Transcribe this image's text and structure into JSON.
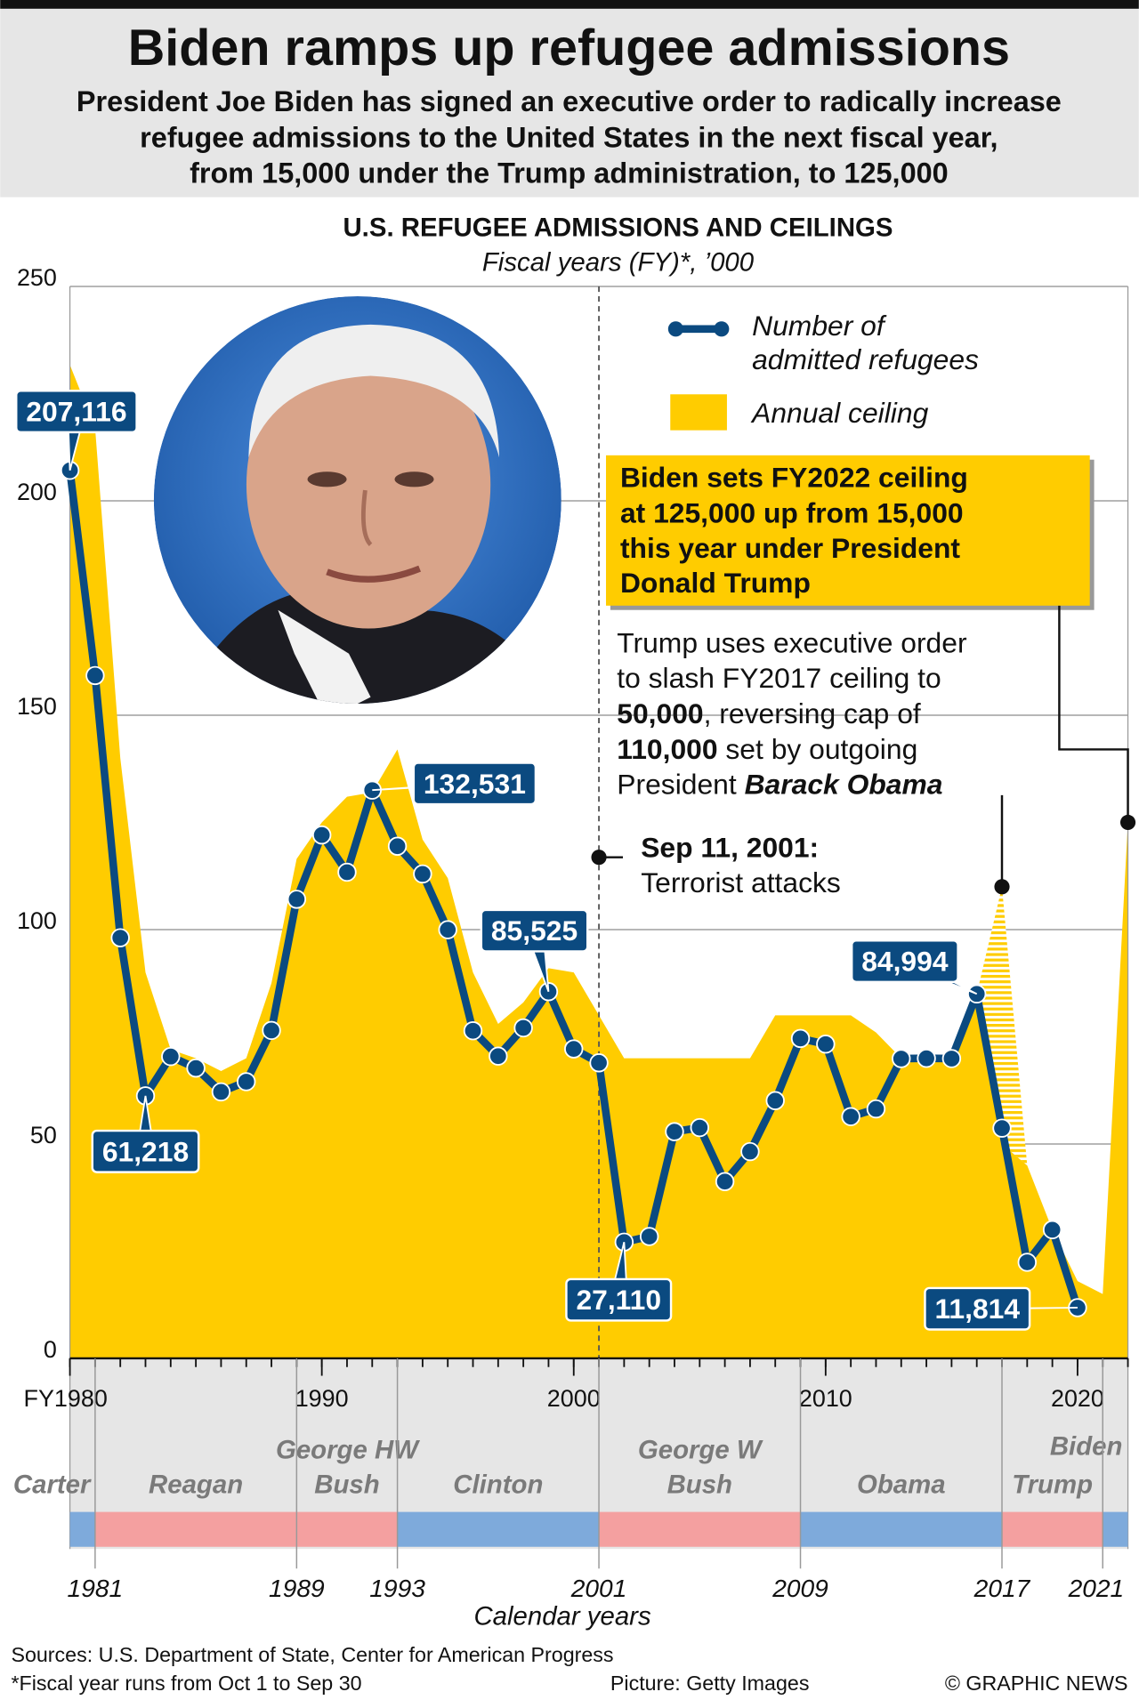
{
  "header": {
    "title": "Biden ramps up refugee admissions",
    "subtitle": [
      "President Joe Biden has signed an executive order to radically increase",
      "refugee admissions to the United States in the next fiscal year,",
      "from 15,000 under the Trump administration, to 125,000"
    ]
  },
  "chart_data": {
    "type": "line",
    "title": "U.S. REFUGEE ADMISSIONS AND CEILINGS",
    "subtitle": "Fiscal years (FY)*, ’000",
    "x": [
      1980,
      1981,
      1982,
      1983,
      1984,
      1985,
      1986,
      1987,
      1988,
      1989,
      1990,
      1991,
      1992,
      1993,
      1994,
      1995,
      1996,
      1997,
      1998,
      1999,
      2000,
      2001,
      2002,
      2003,
      2004,
      2005,
      2006,
      2007,
      2008,
      2009,
      2010,
      2011,
      2012,
      2013,
      2014,
      2015,
      2016,
      2017,
      2018,
      2019,
      2020,
      2021,
      2022
    ],
    "xlim": [
      1980,
      2022
    ],
    "xticks": [
      {
        "value": 1980,
        "label": "FY1980"
      },
      1990,
      2000,
      2010,
      2020
    ],
    "ylim": [
      0,
      250
    ],
    "yticks": [
      0,
      50,
      100,
      150,
      200,
      250
    ],
    "grid": true,
    "series": [
      {
        "name": "Annual ceiling",
        "color": "#ffcc00",
        "style": "area",
        "values": [
          231.7,
          217,
          140,
          90,
          72,
          70,
          67,
          70,
          87.5,
          116.5,
          125,
          131,
          132,
          142,
          121,
          112,
          90,
          78,
          83,
          91,
          90,
          80,
          70,
          70,
          70,
          70,
          70,
          70,
          80,
          80,
          80,
          80,
          76,
          70,
          70,
          70,
          85,
          50,
          45,
          30,
          18,
          15,
          125
        ]
      },
      {
        "name": "Number of admitted refugees",
        "color": "#0b4a80",
        "style": "line",
        "values": [
          207.116,
          159.252,
          98.096,
          61.218,
          70.393,
          67.704,
          62.146,
          64.528,
          76.483,
          107.07,
          122.066,
          113.389,
          132.531,
          119.448,
          112.981,
          99.974,
          76.403,
          70.488,
          77.08,
          85.525,
          72.165,
          68.92,
          27.11,
          28.422,
          52.868,
          53.813,
          41.223,
          48.218,
          60.107,
          74.602,
          73.293,
          56.384,
          58.179,
          69.909,
          69.975,
          69.92,
          84.994,
          53.691,
          22.405,
          30,
          11.814,
          null,
          null
        ],
        "value_labels": [
          "207,116",
          null,
          null,
          "61,218",
          null,
          null,
          null,
          null,
          null,
          null,
          null,
          null,
          "132,531",
          null,
          null,
          null,
          null,
          null,
          null,
          "85,525",
          null,
          null,
          "27,110",
          null,
          null,
          null,
          null,
          null,
          null,
          null,
          null,
          null,
          null,
          null,
          null,
          null,
          "84,994",
          null,
          null,
          null,
          "11,814",
          null,
          null
        ]
      }
    ],
    "obama_ceiling": {
      "x": 2017,
      "value": 110
    },
    "annotations": {
      "sep11": {
        "x": 2001,
        "lines": [
          "Sep 11, 2001:",
          "Terrorist attacks"
        ]
      },
      "biden": {
        "lines": [
          "Biden sets FY2022 ceiling",
          "at 125,000 up from 15,000",
          "this year under President",
          "Donald Trump"
        ]
      },
      "trump": {
        "lines": [
          [
            {
              "text": "Trump uses executive order",
              "style": "normal"
            }
          ],
          [
            {
              "text": "to slash FY2017 ceiling to",
              "style": "normal"
            }
          ],
          [
            {
              "text": "50,000",
              "style": "bold"
            },
            {
              "text": ", reversing cap of",
              "style": "normal"
            }
          ],
          [
            {
              "text": "110,000",
              "style": "bold"
            },
            {
              "text": " set by outgoing",
              "style": "normal"
            }
          ],
          [
            {
              "text": "President ",
              "style": "normal"
            },
            {
              "text": "Barack Obama",
              "style": "bold-italic"
            }
          ]
        ]
      }
    },
    "timeline": {
      "title": "Calendar years",
      "ticks": [
        1981,
        1989,
        1993,
        2001,
        2009,
        2017,
        2021
      ],
      "presidents": [
        {
          "name": [
            "Carter"
          ],
          "color": "#7eaadb"
        },
        {
          "name": [
            "Reagan"
          ],
          "color": "#f4a0a0"
        },
        {
          "name": [
            "George HW",
            "Bush"
          ],
          "color": "#f4a0a0"
        },
        {
          "name": [
            "Clinton"
          ],
          "color": "#7eaadb"
        },
        {
          "name": [
            "George W",
            "Bush"
          ],
          "color": "#f4a0a0"
        },
        {
          "name": [
            "Obama"
          ],
          "color": "#7eaadb"
        },
        {
          "name": [
            "Trump"
          ],
          "color": "#f4a0a0"
        },
        {
          "name": [
            "Biden"
          ],
          "color": "#7eaadb"
        }
      ]
    }
  },
  "footer": {
    "sources": "Sources: U.S. Department of State, Center for American Progress",
    "note": "*Fiscal year runs from Oct 1 to Sep 30",
    "picture": "Picture: Getty Images",
    "copyright": "© GRAPHIC NEWS"
  }
}
